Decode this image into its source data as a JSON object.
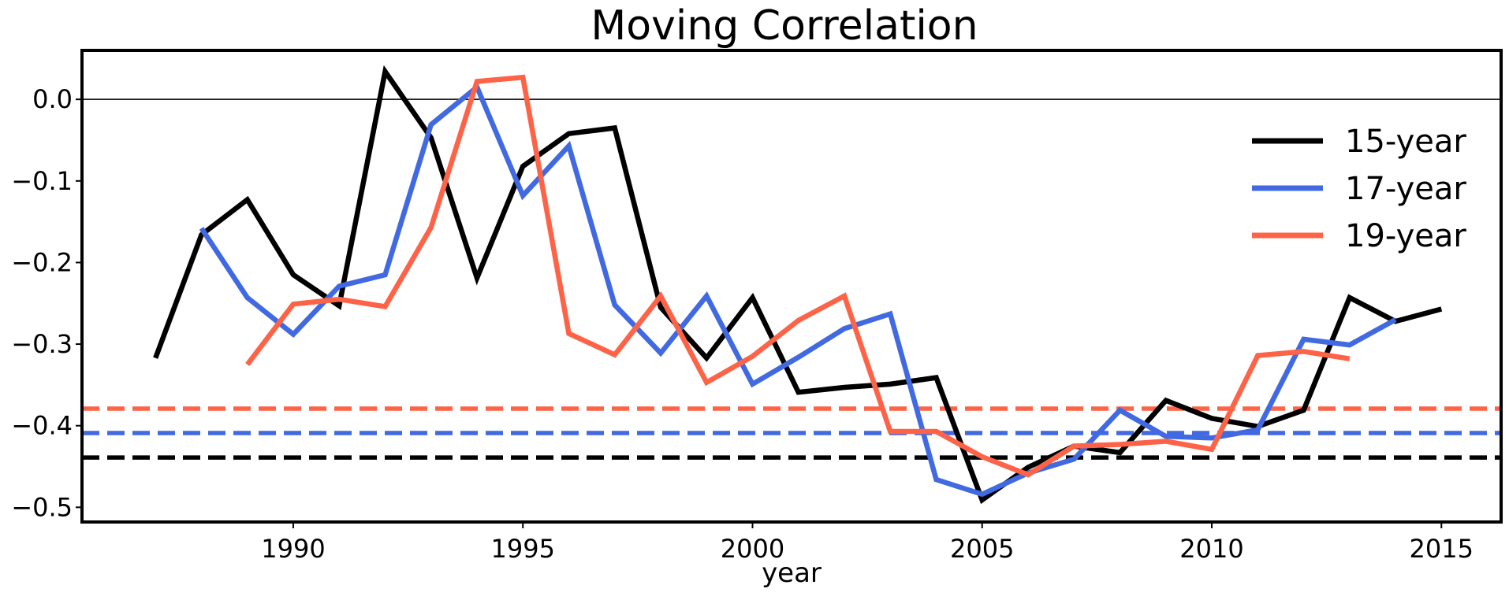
{
  "chart_data": {
    "type": "line",
    "title": "Moving Correlation",
    "xlabel": "year",
    "ylabel": "",
    "xlim": [
      1985.4,
      2016.3
    ],
    "ylim": [
      -0.518,
      0.06
    ],
    "x_ticks": [
      1990,
      1995,
      2000,
      2005,
      2010,
      2015
    ],
    "y_ticks": [
      0.0,
      -0.1,
      -0.2,
      -0.3,
      -0.4,
      -0.5
    ],
    "y_tick_labels": [
      "0.0",
      "−0.1",
      "−0.2",
      "−0.3",
      "−0.4",
      "−0.5"
    ],
    "zero_line": 0.0,
    "grid": false,
    "legend_position": "top-right",
    "series": [
      {
        "name": "15-year",
        "color": "#000000",
        "x": [
          1987,
          1988,
          1989,
          1990,
          1991,
          1992,
          1993,
          1994,
          1995,
          1996,
          1997,
          1998,
          1999,
          2000,
          2001,
          2002,
          2003,
          2004,
          2005,
          2006,
          2007,
          2008,
          2009,
          2010,
          2011,
          2012,
          2013,
          2014,
          2015
        ],
        "values": [
          -0.317,
          -0.166,
          -0.123,
          -0.215,
          -0.253,
          0.034,
          -0.047,
          -0.219,
          -0.082,
          -0.042,
          -0.035,
          -0.255,
          -0.317,
          -0.243,
          -0.359,
          -0.353,
          -0.349,
          -0.341,
          -0.491,
          -0.451,
          -0.425,
          -0.433,
          -0.369,
          -0.391,
          -0.401,
          -0.381,
          -0.243,
          -0.272,
          -0.257
        ],
        "threshold": -0.439
      },
      {
        "name": "17-year",
        "color": "#4169e1",
        "x": [
          1988,
          1989,
          1990,
          1991,
          1992,
          1993,
          1994,
          1995,
          1996,
          1997,
          1998,
          1999,
          2000,
          2001,
          2002,
          2003,
          2004,
          2005,
          2006,
          2007,
          2008,
          2009,
          2010,
          2011,
          2012,
          2013,
          2014
        ],
        "values": [
          -0.158,
          -0.243,
          -0.288,
          -0.229,
          -0.215,
          -0.031,
          0.015,
          -0.118,
          -0.057,
          -0.252,
          -0.311,
          -0.241,
          -0.349,
          -0.316,
          -0.281,
          -0.263,
          -0.466,
          -0.484,
          -0.458,
          -0.441,
          -0.381,
          -0.413,
          -0.415,
          -0.405,
          -0.294,
          -0.301,
          -0.27
        ],
        "threshold": -0.409
      },
      {
        "name": "19-year",
        "color": "#ff6347",
        "x": [
          1989,
          1990,
          1991,
          1992,
          1993,
          1994,
          1995,
          1996,
          1997,
          1998,
          1999,
          2000,
          2001,
          2002,
          2003,
          2004,
          2005,
          2006,
          2007,
          2008,
          2009,
          2010,
          2011,
          2012,
          2013
        ],
        "values": [
          -0.325,
          -0.251,
          -0.245,
          -0.254,
          -0.157,
          0.022,
          0.027,
          -0.287,
          -0.313,
          -0.241,
          -0.347,
          -0.315,
          -0.271,
          -0.241,
          -0.407,
          -0.407,
          -0.438,
          -0.46,
          -0.425,
          -0.423,
          -0.419,
          -0.429,
          -0.314,
          -0.309,
          -0.318
        ],
        "threshold": -0.379
      }
    ]
  }
}
